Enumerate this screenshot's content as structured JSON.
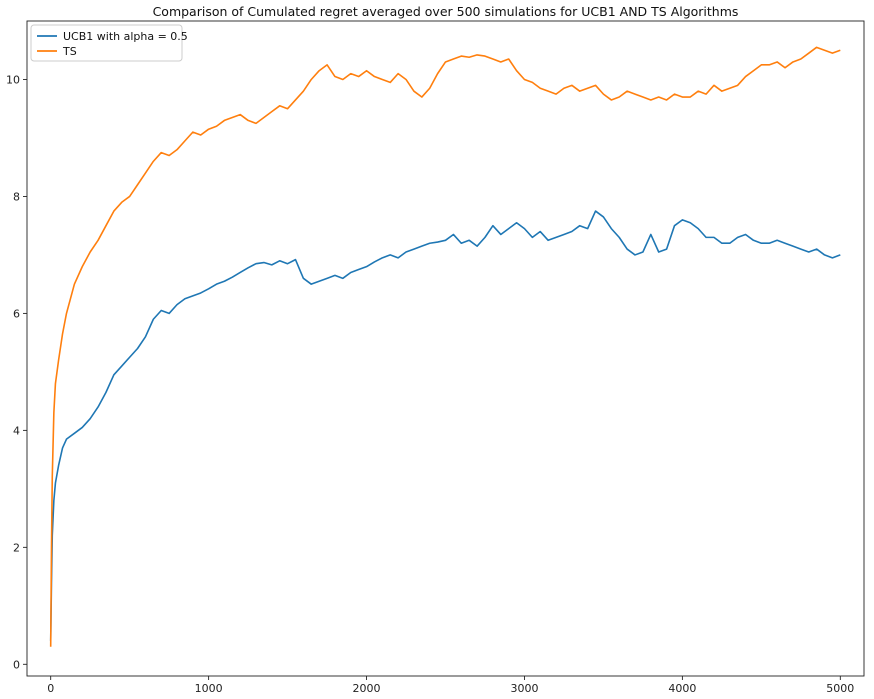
{
  "chart_data": {
    "type": "line",
    "title": "Comparison of Cumulated regret averaged over 500 simulations for UCB1 AND TS Algorithms",
    "xlabel": "",
    "ylabel": "",
    "xlim": [
      -150,
      5150
    ],
    "ylim": [
      -0.2,
      11.0
    ],
    "xticks": [
      0,
      1000,
      2000,
      3000,
      4000,
      5000
    ],
    "yticks": [
      0,
      2,
      4,
      6,
      8,
      10
    ],
    "grid": false,
    "legend_position": "top-left",
    "series": [
      {
        "name": "UCB1 with alpha = 0.5",
        "color": "#1f77b4",
        "x": [
          0,
          5,
          10,
          20,
          30,
          50,
          75,
          100,
          150,
          200,
          250,
          300,
          350,
          400,
          450,
          500,
          550,
          600,
          650,
          700,
          750,
          800,
          850,
          900,
          950,
          1000,
          1050,
          1100,
          1150,
          1200,
          1250,
          1300,
          1350,
          1400,
          1450,
          1500,
          1550,
          1600,
          1650,
          1700,
          1750,
          1800,
          1850,
          1900,
          1950,
          2000,
          2050,
          2100,
          2150,
          2200,
          2250,
          2300,
          2350,
          2400,
          2450,
          2500,
          2550,
          2600,
          2650,
          2700,
          2750,
          2800,
          2850,
          2900,
          2950,
          3000,
          3050,
          3100,
          3150,
          3200,
          3250,
          3300,
          3350,
          3400,
          3450,
          3500,
          3550,
          3600,
          3650,
          3700,
          3750,
          3800,
          3850,
          3900,
          3950,
          4000,
          4050,
          4100,
          4150,
          4200,
          4250,
          4300,
          4350,
          4400,
          4450,
          4500,
          4550,
          4600,
          4650,
          4700,
          4750,
          4800,
          4850,
          4900,
          4950,
          5000
        ],
        "y": [
          0.4,
          1.4,
          2.2,
          2.8,
          3.1,
          3.4,
          3.7,
          3.85,
          3.95,
          4.05,
          4.2,
          4.4,
          4.65,
          4.95,
          5.1,
          5.25,
          5.4,
          5.6,
          5.9,
          6.05,
          6.0,
          6.15,
          6.25,
          6.3,
          6.35,
          6.42,
          6.5,
          6.55,
          6.62,
          6.7,
          6.78,
          6.85,
          6.87,
          6.83,
          6.9,
          6.85,
          6.92,
          6.6,
          6.5,
          6.55,
          6.6,
          6.65,
          6.6,
          6.7,
          6.75,
          6.8,
          6.88,
          6.95,
          7.0,
          6.95,
          7.05,
          7.1,
          7.15,
          7.2,
          7.22,
          7.25,
          7.35,
          7.2,
          7.25,
          7.15,
          7.3,
          7.5,
          7.35,
          7.45,
          7.55,
          7.45,
          7.3,
          7.4,
          7.25,
          7.3,
          7.35,
          7.4,
          7.5,
          7.45,
          7.75,
          7.65,
          7.45,
          7.3,
          7.1,
          7.0,
          7.05,
          7.35,
          7.05,
          7.1,
          7.5,
          7.6,
          7.55,
          7.45,
          7.3,
          7.3,
          7.2,
          7.2,
          7.3,
          7.35,
          7.25,
          7.2,
          7.2,
          7.25,
          7.2,
          7.15,
          7.1,
          7.05,
          7.1,
          7.0,
          6.95,
          7.0
        ]
      },
      {
        "name": "TS",
        "color": "#ff7f0e",
        "x": [
          0,
          5,
          10,
          20,
          30,
          50,
          75,
          100,
          150,
          200,
          250,
          300,
          350,
          400,
          450,
          500,
          550,
          600,
          650,
          700,
          750,
          800,
          850,
          900,
          950,
          1000,
          1050,
          1100,
          1150,
          1200,
          1250,
          1300,
          1350,
          1400,
          1450,
          1500,
          1550,
          1600,
          1650,
          1700,
          1750,
          1800,
          1850,
          1900,
          1950,
          2000,
          2050,
          2100,
          2150,
          2200,
          2250,
          2300,
          2350,
          2400,
          2450,
          2500,
          2550,
          2600,
          2650,
          2700,
          2750,
          2800,
          2850,
          2900,
          2950,
          3000,
          3050,
          3100,
          3150,
          3200,
          3250,
          3300,
          3350,
          3400,
          3450,
          3500,
          3550,
          3600,
          3650,
          3700,
          3750,
          3800,
          3850,
          3900,
          3950,
          4000,
          4050,
          4100,
          4150,
          4200,
          4250,
          4300,
          4350,
          4400,
          4450,
          4500,
          4550,
          4600,
          4650,
          4700,
          4750,
          4800,
          4850,
          4900,
          4950,
          5000
        ],
        "y": [
          0.3,
          2.0,
          3.2,
          4.3,
          4.8,
          5.2,
          5.65,
          6.0,
          6.5,
          6.8,
          7.05,
          7.25,
          7.5,
          7.75,
          7.9,
          8.0,
          8.2,
          8.4,
          8.6,
          8.75,
          8.7,
          8.8,
          8.95,
          9.1,
          9.05,
          9.15,
          9.2,
          9.3,
          9.35,
          9.4,
          9.3,
          9.25,
          9.35,
          9.45,
          9.55,
          9.5,
          9.65,
          9.8,
          10.0,
          10.15,
          10.25,
          10.05,
          10.0,
          10.1,
          10.05,
          10.15,
          10.05,
          10.0,
          9.95,
          10.1,
          10.0,
          9.8,
          9.7,
          9.85,
          10.1,
          10.3,
          10.35,
          10.4,
          10.38,
          10.42,
          10.4,
          10.35,
          10.3,
          10.35,
          10.15,
          10.0,
          9.95,
          9.85,
          9.8,
          9.75,
          9.85,
          9.9,
          9.8,
          9.85,
          9.9,
          9.75,
          9.65,
          9.7,
          9.8,
          9.75,
          9.7,
          9.65,
          9.7,
          9.65,
          9.75,
          9.7,
          9.7,
          9.8,
          9.75,
          9.9,
          9.8,
          9.85,
          9.9,
          10.05,
          10.15,
          10.25,
          10.25,
          10.3,
          10.2,
          10.3,
          10.35,
          10.45,
          10.55,
          10.5,
          10.45,
          10.5
        ]
      }
    ]
  }
}
